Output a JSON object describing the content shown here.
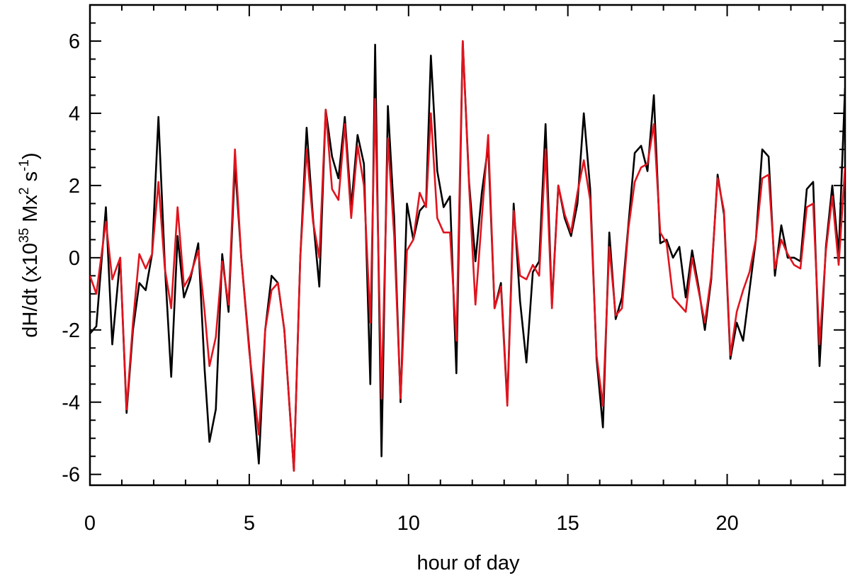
{
  "chart_data": {
    "type": "line",
    "xlabel": "hour of day",
    "ylabel": {
      "main": "dH/dt (x10",
      "exp": "35",
      "mx": " Mx",
      "mx_exp": "2",
      "s": " s",
      "s_exp": "-1",
      "close": ")"
    },
    "xlim": [
      0,
      23.7
    ],
    "ylim": [
      -6.3,
      7.0
    ],
    "x_ticks": [
      0,
      5,
      10,
      15,
      20
    ],
    "x_tick_labels": [
      "0",
      "5",
      "10",
      "15",
      "20"
    ],
    "y_ticks": [
      -6,
      -4,
      -2,
      0,
      2,
      4,
      6
    ],
    "y_tick_labels": [
      "-6",
      "-4",
      "-2",
      "0",
      "2",
      "4",
      "6"
    ],
    "grid": false,
    "series": [
      {
        "color": "#000000",
        "x": [
          0.0,
          0.2,
          0.5,
          0.7,
          0.95,
          1.15,
          1.35,
          1.55,
          1.75,
          1.95,
          2.15,
          2.35,
          2.55,
          2.75,
          2.95,
          3.15,
          3.4,
          3.6,
          3.75,
          3.95,
          4.15,
          4.35,
          4.55,
          4.75,
          5.0,
          5.3,
          5.5,
          5.7,
          5.9,
          6.1,
          6.4,
          6.6,
          6.8,
          7.0,
          7.2,
          7.4,
          7.6,
          7.8,
          8.0,
          8.2,
          8.4,
          8.6,
          8.8,
          8.95,
          9.15,
          9.35,
          9.55,
          9.75,
          9.95,
          10.15,
          10.35,
          10.55,
          10.7,
          10.9,
          11.1,
          11.3,
          11.5,
          11.7,
          11.9,
          12.1,
          12.3,
          12.5,
          12.7,
          12.9,
          13.1,
          13.3,
          13.5,
          13.7,
          13.9,
          14.1,
          14.3,
          14.5,
          14.7,
          14.9,
          15.1,
          15.3,
          15.5,
          15.7,
          15.9,
          16.1,
          16.3,
          16.5,
          16.7,
          16.9,
          17.1,
          17.3,
          17.5,
          17.7,
          17.9,
          18.1,
          18.3,
          18.5,
          18.7,
          18.9,
          19.1,
          19.3,
          19.5,
          19.7,
          19.9,
          20.1,
          20.3,
          20.5,
          20.7,
          20.9,
          21.1,
          21.3,
          21.5,
          21.7,
          21.9,
          22.1,
          22.3,
          22.5,
          22.7,
          22.9,
          23.1,
          23.3,
          23.5,
          23.7
        ],
        "values": [
          -2.1,
          -1.9,
          1.4,
          -2.4,
          0.0,
          -4.3,
          -2.0,
          -0.7,
          -0.9,
          0.1,
          3.9,
          -0.2,
          -3.3,
          0.6,
          -1.1,
          -0.6,
          0.4,
          -3.1,
          -5.1,
          -4.2,
          0.1,
          -1.5,
          2.6,
          0.0,
          -2.5,
          -5.7,
          -2.0,
          -0.5,
          -0.7,
          -2.0,
          -5.9,
          0.0,
          3.6,
          1.1,
          -0.8,
          4.1,
          2.8,
          2.2,
          3.9,
          1.4,
          3.4,
          2.6,
          -3.5,
          5.9,
          -5.5,
          4.2,
          1.1,
          -4.0,
          1.5,
          0.5,
          1.3,
          1.5,
          5.6,
          2.4,
          1.4,
          1.7,
          -3.2,
          6.0,
          2.1,
          -0.1,
          1.8,
          3.1,
          -1.4,
          -0.7,
          -4.0,
          1.5,
          -1.2,
          -2.9,
          -0.4,
          -0.1,
          3.7,
          -1.3,
          2.0,
          1.1,
          0.6,
          1.5,
          4.0,
          1.9,
          -2.8,
          -4.7,
          0.7,
          -1.7,
          -1.1,
          0.9,
          2.9,
          3.1,
          2.4,
          4.5,
          0.4,
          0.5,
          0.0,
          0.3,
          -1.1,
          0.2,
          -0.8,
          -2.0,
          -0.6,
          2.3,
          1.2,
          -2.8,
          -1.8,
          -2.3,
          -0.9,
          0.5,
          3.0,
          2.8,
          -0.5,
          0.9,
          0.0,
          0.0,
          -0.1,
          1.9,
          2.1,
          -3.0,
          0.3,
          2.0,
          0.1,
          4.7
        ]
      },
      {
        "color": "#e0141e",
        "x": [
          0.0,
          0.2,
          0.5,
          0.7,
          0.95,
          1.15,
          1.35,
          1.55,
          1.75,
          1.95,
          2.15,
          2.35,
          2.55,
          2.75,
          2.95,
          3.15,
          3.4,
          3.6,
          3.75,
          3.95,
          4.15,
          4.35,
          4.55,
          4.75,
          5.0,
          5.3,
          5.5,
          5.7,
          5.9,
          6.1,
          6.4,
          6.6,
          6.8,
          7.0,
          7.2,
          7.4,
          7.6,
          7.8,
          8.0,
          8.2,
          8.4,
          8.6,
          8.8,
          8.95,
          9.15,
          9.35,
          9.55,
          9.75,
          9.95,
          10.15,
          10.35,
          10.55,
          10.7,
          10.9,
          11.1,
          11.3,
          11.5,
          11.7,
          11.9,
          12.1,
          12.3,
          12.5,
          12.7,
          12.9,
          13.1,
          13.3,
          13.5,
          13.7,
          13.9,
          14.1,
          14.3,
          14.5,
          14.7,
          14.9,
          15.1,
          15.3,
          15.5,
          15.7,
          15.9,
          16.1,
          16.3,
          16.5,
          16.7,
          16.9,
          17.1,
          17.3,
          17.5,
          17.7,
          17.9,
          18.1,
          18.3,
          18.5,
          18.7,
          18.9,
          19.1,
          19.3,
          19.5,
          19.7,
          19.9,
          20.1,
          20.3,
          20.5,
          20.7,
          20.9,
          21.1,
          21.3,
          21.5,
          21.7,
          21.9,
          22.1,
          22.3,
          22.5,
          22.7,
          22.9,
          23.1,
          23.3,
          23.5,
          23.7
        ],
        "values": [
          -0.5,
          -1.0,
          1.0,
          -0.6,
          0.0,
          -4.2,
          -1.8,
          0.1,
          -0.3,
          0.1,
          2.1,
          -0.3,
          -1.4,
          1.4,
          -0.8,
          -0.5,
          0.2,
          -1.5,
          -3.0,
          -2.2,
          -0.1,
          -1.3,
          3.0,
          0.0,
          -2.6,
          -4.9,
          -2.0,
          -0.9,
          -0.7,
          -2.0,
          -5.9,
          0.0,
          3.0,
          1.0,
          0.0,
          4.1,
          1.9,
          1.6,
          3.7,
          1.1,
          3.1,
          2.0,
          -1.8,
          4.4,
          -3.9,
          3.3,
          0.6,
          -3.9,
          0.2,
          0.5,
          1.8,
          1.4,
          4.0,
          1.1,
          0.7,
          0.7,
          -2.3,
          6.0,
          2.0,
          -1.3,
          1.1,
          3.4,
          -1.4,
          -0.8,
          -4.1,
          1.3,
          -0.5,
          -0.6,
          -0.2,
          -0.5,
          3.0,
          -1.4,
          2.0,
          1.2,
          0.7,
          1.8,
          2.7,
          1.6,
          -2.7,
          -4.1,
          0.3,
          -1.6,
          -1.4,
          0.8,
          2.1,
          2.5,
          2.6,
          3.7,
          0.7,
          0.4,
          -1.1,
          -1.3,
          -1.5,
          0.0,
          -0.9,
          -1.8,
          -0.5,
          2.2,
          1.3,
          -2.7,
          -1.5,
          -0.9,
          -0.4,
          0.5,
          2.2,
          2.3,
          -0.3,
          0.5,
          0.1,
          -0.2,
          -0.3,
          1.4,
          1.5,
          -2.4,
          0.2,
          1.7,
          -0.2,
          2.5
        ]
      }
    ]
  }
}
